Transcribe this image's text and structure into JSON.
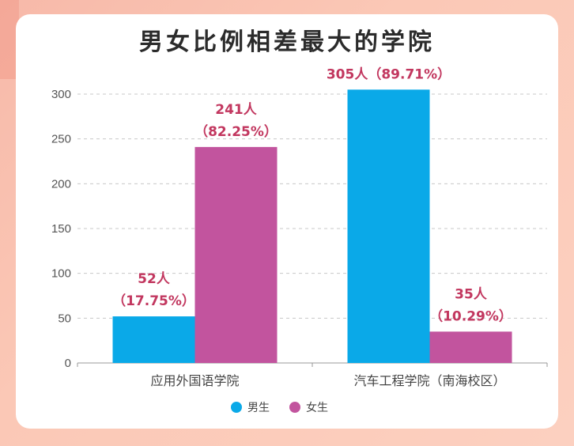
{
  "title": "男女比例相差最大的学院",
  "colors": {
    "male": "#0aa9e8",
    "female": "#c2549e",
    "label": "#c2375f"
  },
  "chart_data": {
    "type": "bar",
    "title": "男女比例相差最大的学院",
    "categories": [
      "应用外国语学院",
      "汽车工程学院（南海校区）"
    ],
    "series": [
      {
        "name": "男生",
        "values": [
          52,
          305
        ],
        "labels": [
          [
            "52人",
            "（17.75%）"
          ],
          [
            "305人（89.71%）"
          ]
        ]
      },
      {
        "name": "女生",
        "values": [
          241,
          35
        ],
        "labels": [
          [
            "241人",
            "（82.25%）"
          ],
          [
            "35人",
            "（10.29%）"
          ]
        ]
      }
    ],
    "ylim": [
      0,
      300
    ],
    "yticks": [
      0,
      50,
      100,
      150,
      200,
      250,
      300
    ],
    "grid": true,
    "legend": "bottom"
  }
}
